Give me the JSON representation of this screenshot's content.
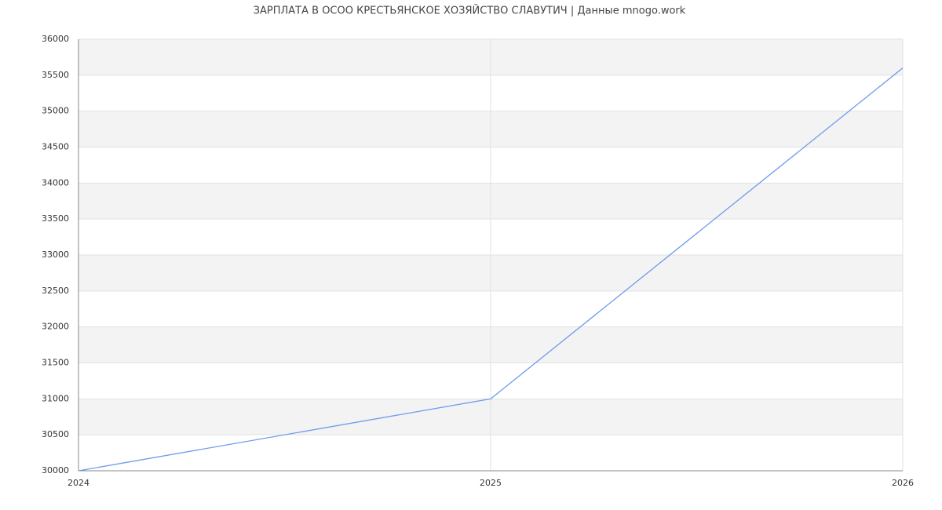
{
  "chart_data": {
    "type": "line",
    "title": "ЗАРПЛАТА В ОСОО КРЕСТЬЯНСКОЕ ХОЗЯЙСТВО СЛАВУТИЧ | Данные mnogo.work",
    "x": [
      2024,
      2025,
      2026
    ],
    "series": [
      {
        "color": "#6f9ced",
        "values": [
          30000,
          31000,
          35600
        ]
      }
    ],
    "xlim": [
      2024,
      2026
    ],
    "xticks": [
      2024,
      2025,
      2026
    ],
    "ylim": [
      30000,
      36000
    ],
    "yticks": [
      30000,
      30500,
      31000,
      31500,
      32000,
      32500,
      33000,
      33500,
      34000,
      34500,
      35000,
      35500,
      36000
    ],
    "grid": true
  }
}
